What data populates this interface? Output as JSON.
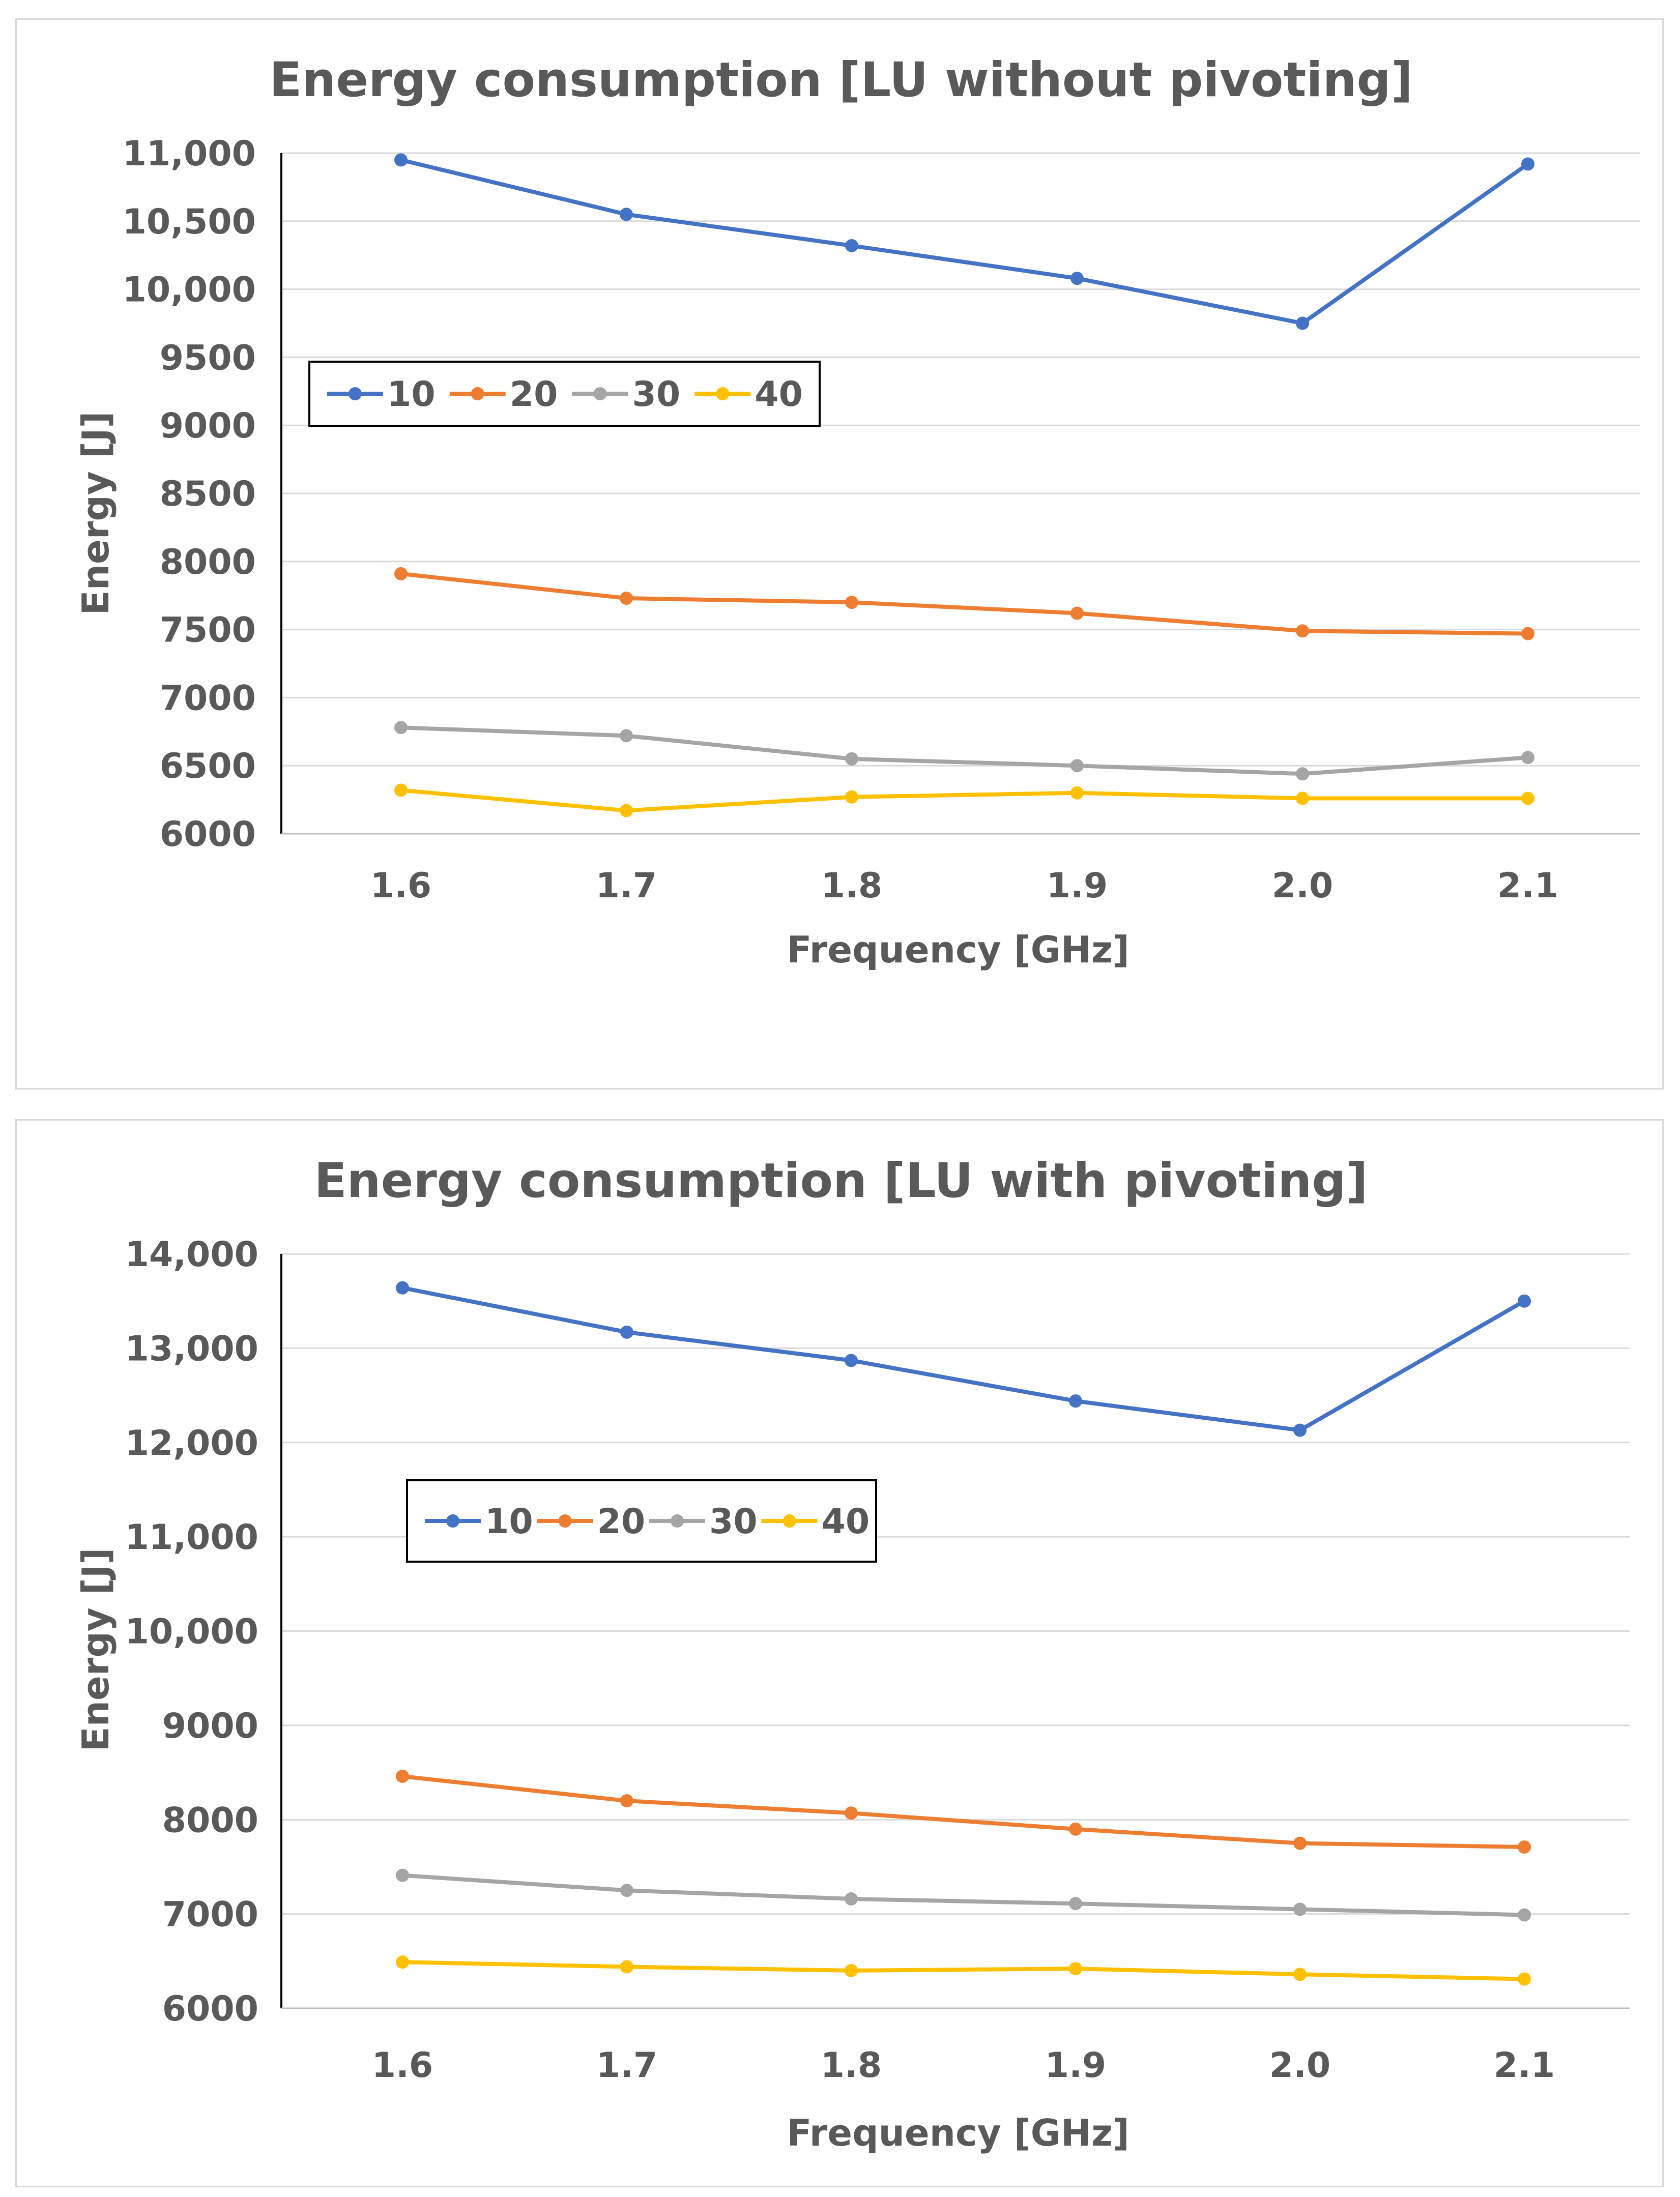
{
  "chart_data": [
    {
      "type": "line",
      "title": "Energy consumption [LU without pivoting]",
      "xlabel": "Frequency [GHz]",
      "ylabel": "Energy [J]",
      "categories": [
        "1.6",
        "1.7",
        "1.8",
        "1.9",
        "2.0",
        "2.1"
      ],
      "ylim": [
        6000,
        11000
      ],
      "yticks": [
        {
          "value": 6000,
          "label": "6000"
        },
        {
          "value": 6500,
          "label": "6500"
        },
        {
          "value": 7000,
          "label": "7000"
        },
        {
          "value": 7500,
          "label": "7500"
        },
        {
          "value": 8000,
          "label": "8000"
        },
        {
          "value": 8500,
          "label": "8500"
        },
        {
          "value": 9000,
          "label": "9000"
        },
        {
          "value": 9500,
          "label": "9500"
        },
        {
          "value": 10000,
          "label": "10,000"
        },
        {
          "value": 10500,
          "label": "10,500"
        },
        {
          "value": 11000,
          "label": "11,000"
        }
      ],
      "grid": true,
      "legend_position": "upper-left",
      "series": [
        {
          "name": "10",
          "color": "#4472c4",
          "values": [
            10950,
            10550,
            10320,
            10080,
            9750,
            10920
          ]
        },
        {
          "name": "20",
          "color": "#ed7d31",
          "values": [
            7910,
            7730,
            7700,
            7620,
            7490,
            7470
          ]
        },
        {
          "name": "30",
          "color": "#a5a5a5",
          "values": [
            6780,
            6720,
            6550,
            6500,
            6440,
            6560
          ]
        },
        {
          "name": "40",
          "color": "#ffc000",
          "values": [
            6320,
            6170,
            6270,
            6300,
            6260,
            6260
          ]
        }
      ]
    },
    {
      "type": "line",
      "title": "Energy consumption [LU with pivoting]",
      "xlabel": "Frequency [GHz]",
      "ylabel": "Energy [J]",
      "categories": [
        "1.6",
        "1.7",
        "1.8",
        "1.9",
        "2.0",
        "2.1"
      ],
      "ylim": [
        6000,
        14000
      ],
      "yticks": [
        {
          "value": 6000,
          "label": "6000"
        },
        {
          "value": 7000,
          "label": "7000"
        },
        {
          "value": 8000,
          "label": "8000"
        },
        {
          "value": 9000,
          "label": "9000"
        },
        {
          "value": 10000,
          "label": "10,000"
        },
        {
          "value": 11000,
          "label": "11,000"
        },
        {
          "value": 12000,
          "label": "12,000"
        },
        {
          "value": 13000,
          "label": "13,000"
        },
        {
          "value": 14000,
          "label": "14,000"
        }
      ],
      "grid": true,
      "legend_position": "upper-left",
      "series": [
        {
          "name": "10",
          "color": "#4472c4",
          "values": [
            13640,
            13170,
            12870,
            12440,
            12130,
            13500
          ]
        },
        {
          "name": "20",
          "color": "#ed7d31",
          "values": [
            8460,
            8200,
            8070,
            7900,
            7750,
            7710
          ]
        },
        {
          "name": "30",
          "color": "#a5a5a5",
          "values": [
            7410,
            7250,
            7160,
            7110,
            7050,
            6990
          ]
        },
        {
          "name": "40",
          "color": "#ffc000",
          "values": [
            6490,
            6440,
            6400,
            6420,
            6360,
            6310
          ]
        }
      ]
    }
  ]
}
